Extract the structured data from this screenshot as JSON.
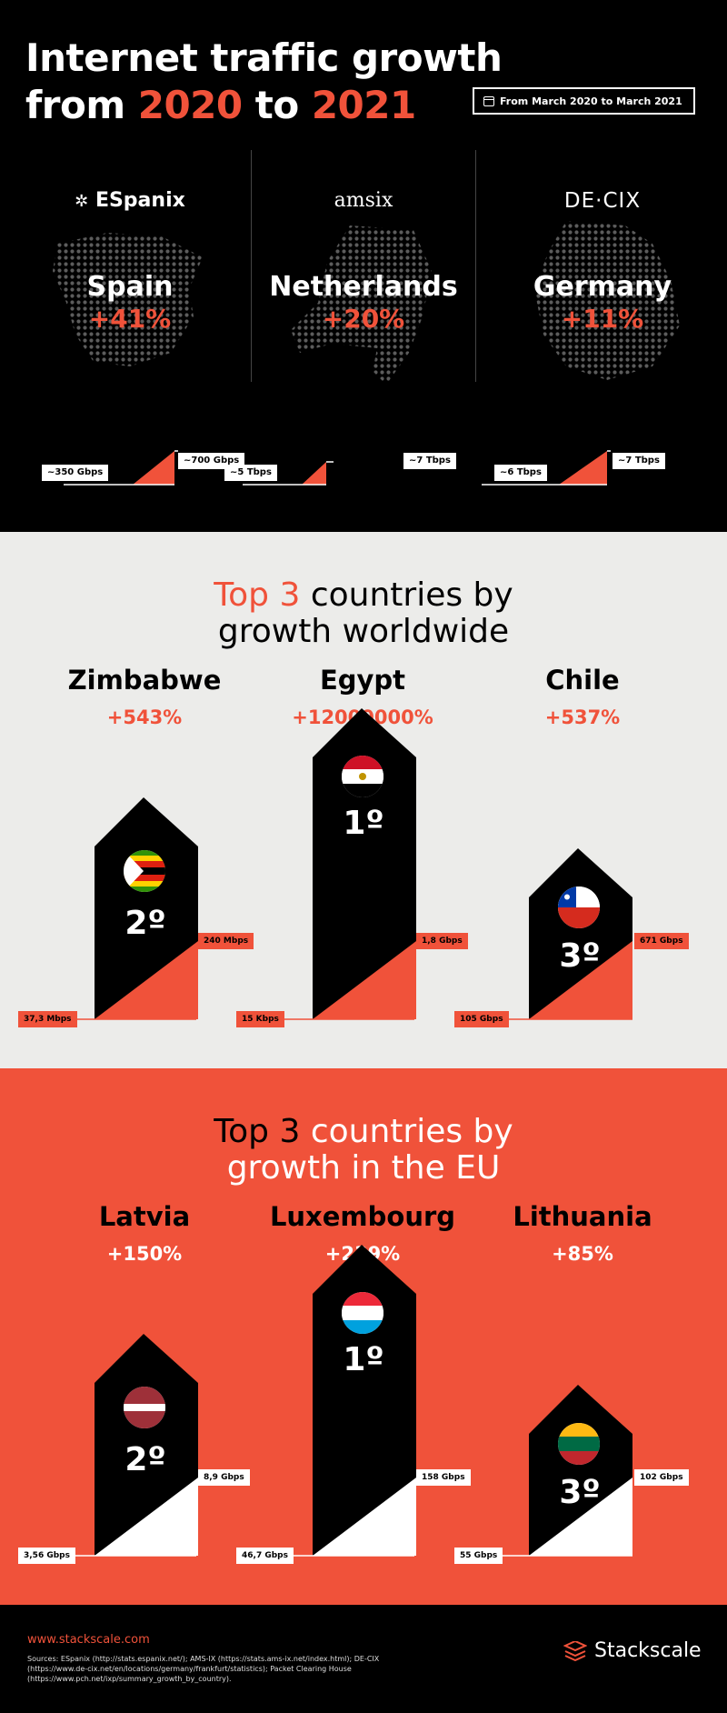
{
  "header": {
    "title_line1": "Internet traffic growth",
    "title_from": "from",
    "year_start": "2020",
    "title_to": "to",
    "year_end": "2021",
    "date_range": "From March 2020 to March 2021",
    "ixps": [
      {
        "logo": "ESpanix",
        "country": "Spain",
        "growth": "+41%",
        "before": "~350 Gbps",
        "after": "~700 Gbps"
      },
      {
        "logo": "amsix",
        "country": "Netherlands",
        "growth": "+20%",
        "before": "~5 Tbps",
        "after": "~7 Tbps"
      },
      {
        "logo": "DE·CIX",
        "country": "Germany",
        "growth": "+11%",
        "before": "~6 Tbps",
        "after": "~7 Tbps"
      }
    ]
  },
  "world": {
    "title_highlight": "Top 3",
    "title_rest": "countries by",
    "title_line2": "growth worldwide",
    "countries": [
      {
        "name": "Zimbabwe",
        "growth": "+543%",
        "rank": "2º",
        "before": "37,3 Mbps",
        "after": "240 Mbps"
      },
      {
        "name": "Egypt",
        "growth": "+12000000%",
        "rank": "1º",
        "before": "15 Kbps",
        "after": "1,8 Gbps"
      },
      {
        "name": "Chile",
        "growth": "+537%",
        "rank": "3º",
        "before": "105 Gbps",
        "after": "671 Gbps"
      }
    ]
  },
  "eu": {
    "title_highlight": "Top 3",
    "title_rest": "countries by",
    "title_line2": "growth in the EU",
    "countries": [
      {
        "name": "Latvia",
        "growth": "+150%",
        "rank": "2º",
        "before": "3,56 Gbps",
        "after": "8,9 Gbps"
      },
      {
        "name": "Luxembourg",
        "growth": "+239%",
        "rank": "1º",
        "before": "46,7 Gbps",
        "after": "158 Gbps"
      },
      {
        "name": "Lithuania",
        "growth": "+85%",
        "rank": "3º",
        "before": "55 Gbps",
        "after": "102 Gbps"
      }
    ]
  },
  "footer": {
    "website": "www.stackscale.com",
    "sources": "Sources: ESpanix (http://stats.espanix.net/); AMS-IX (https://stats.ams-ix.net/index.html); DE-CIX (https://www.de-cix.net/en/locations/germany/frankfurt/statistics); Packet Clearing House (https://www.pch.net/ixp/summary_growth_by_country).",
    "brand": "Stackscale"
  },
  "colors": {
    "accent": "#f0523a",
    "dark": "#000000",
    "light": "#ececea"
  },
  "icons": [
    "calendar-icon",
    "espanix-logo-icon",
    "stackscale-logo-icon",
    "zimbabwe-flag-icon",
    "egypt-flag-icon",
    "chile-flag-icon",
    "latvia-flag-icon",
    "luxembourg-flag-icon",
    "lithuania-flag-icon"
  ]
}
